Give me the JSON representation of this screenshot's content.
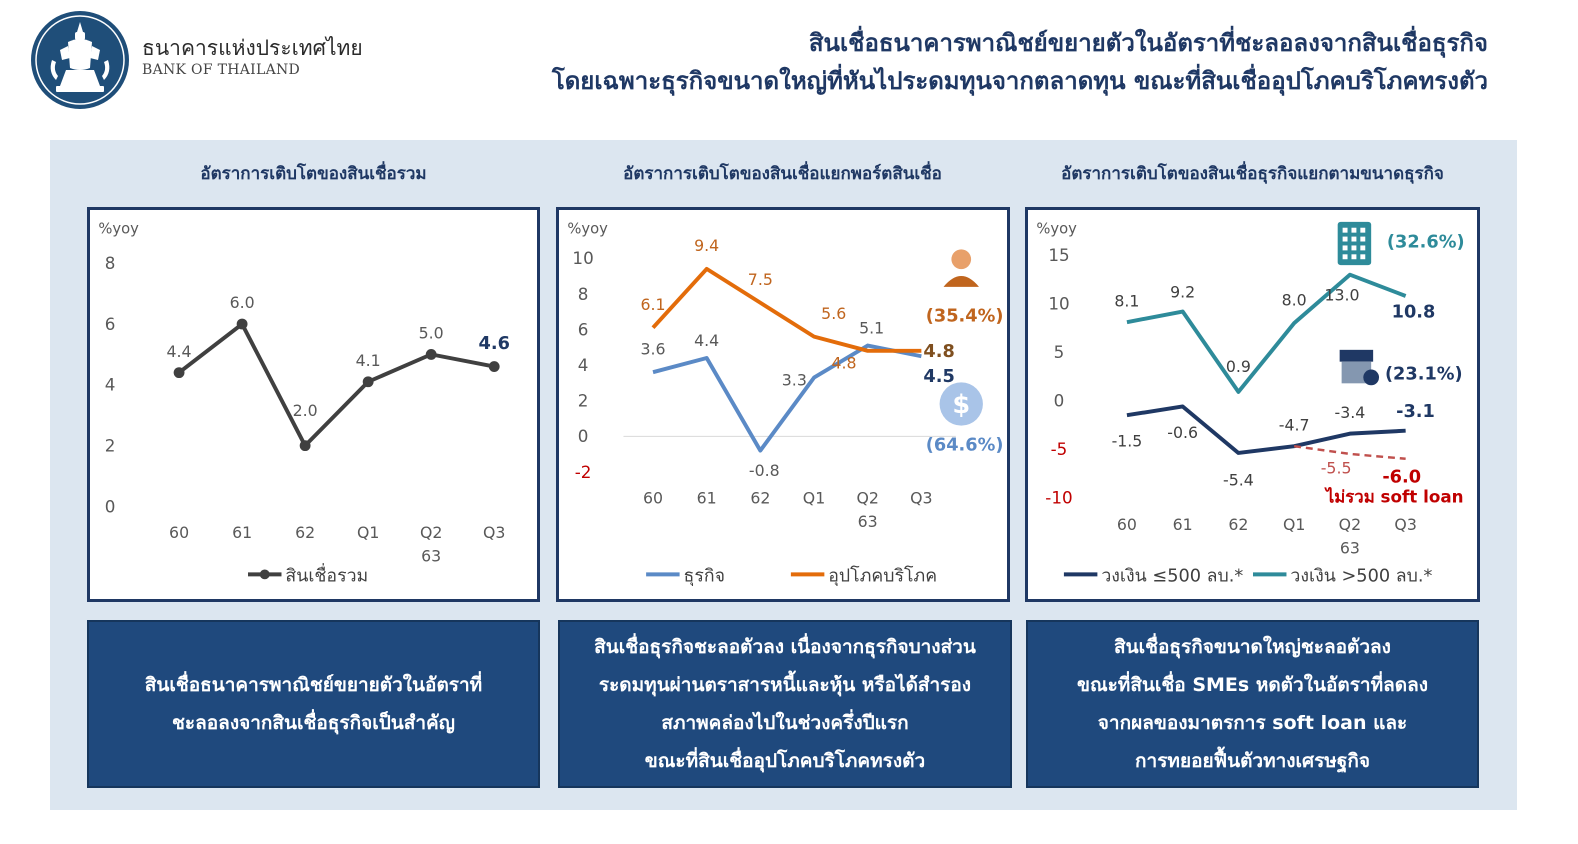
{
  "header": {
    "org_name_th": "ธนาคารแห่งประเทศไทย",
    "org_name_en": "BANK OF THAILAND",
    "headline_line1": "สินเชื่อธนาคารพาณิชย์ขยายตัวในอัตราที่ชะลอลงจากสินเชื่อธุรกิจ",
    "headline_line2": "โดยเฉพาะธุรกิจขนาดใหญ่ที่หันไประดมทุนจากตลาดทุน ขณะที่สินเชื่ออุปโภคบริโภคทรงตัว"
  },
  "colors": {
    "navy": "#1f3864",
    "total_line": "#404040",
    "business_line": "#5b8ac6",
    "consumer_line": "#e36c0a",
    "small_line": "#1f3864",
    "large_line": "#2e8b9a",
    "soft_loan_line": "#c0504d",
    "note_bg": "#1f497d",
    "panel_bg": "#dce6f0"
  },
  "charts": [
    {
      "subtitle": "อัตราการเติบโตของสินเชื่อรวม",
      "note_lines": [
        "สินเชื่อธนาคารพาณิชย์ขยายตัวในอัตราที่",
        "ชะลอลงจากสินเชื่อธุรกิจเป็นสำคัญ"
      ]
    },
    {
      "subtitle": "อัตราการเติบโตของสินเชื่อแยกพอร์ตสินเชื่อ",
      "note_lines": [
        "สินเชื่อธุรกิจชะลอตัวลง เนื่องจากธุรกิจบางส่วน",
        "ระดมทุนผ่านตราสารหนี้และหุ้น หรือได้สำรอง",
        "สภาพคล่องไปในช่วงครึ่งปีแรก",
        "ขณะที่สินเชื่ออุปโภคบริโภคทรงตัว"
      ]
    },
    {
      "subtitle": "อัตราการเติบโตของสินเชื่อธุรกิจแยกตามขนาดธุรกิจ",
      "note_lines": [
        "สินเชื่อธุรกิจขนาดใหญ่ชะลอตัวลง",
        "ขณะที่สินเชื่อ SMEs หดตัวในอัตราที่ลดลง",
        "จากผลของมาตรการ soft loan และ",
        "การทยอยฟื้นตัวทางเศรษฐกิจ"
      ]
    }
  ],
  "chart_data": [
    {
      "type": "line",
      "ylabel": "%yoy",
      "ylim": [
        0,
        8
      ],
      "yticks": [
        0,
        2,
        4,
        6,
        8
      ],
      "categories": [
        "60",
        "61",
        "62",
        "Q1",
        "Q2",
        "Q3"
      ],
      "group_label": "63",
      "grid": false,
      "legend": "bottom",
      "series": [
        {
          "name": "สินเชื่อรวม",
          "values": [
            4.4,
            6.0,
            2.0,
            4.1,
            5.0,
            4.6
          ],
          "labels": [
            "4.4",
            "6.0",
            "2.0",
            "4.1",
            "5.0",
            "4.6"
          ]
        }
      ]
    },
    {
      "type": "line",
      "ylabel": "%yoy",
      "ylim": [
        -2,
        10
      ],
      "yticks": [
        -2,
        0,
        2,
        4,
        6,
        8,
        10
      ],
      "categories": [
        "60",
        "61",
        "62",
        "Q1",
        "Q2",
        "Q3"
      ],
      "group_label": "63",
      "grid": false,
      "legend": "bottom",
      "series": [
        {
          "name": "ธุรกิจ",
          "values": [
            3.6,
            4.4,
            -0.8,
            3.3,
            5.1,
            4.5
          ],
          "labels": [
            "3.6",
            "4.4",
            "-0.8",
            "3.3",
            "5.1",
            "4.5"
          ],
          "share": "(64.6%)"
        },
        {
          "name": "อุปโภคบริโภค",
          "values": [
            6.1,
            9.4,
            7.5,
            5.6,
            4.8,
            4.8
          ],
          "labels": [
            "6.1",
            "9.4",
            "7.5",
            "5.6",
            "4.8",
            "4.8"
          ],
          "share": "(35.4%)"
        }
      ]
    },
    {
      "type": "line",
      "ylabel": "%yoy",
      "ylim": [
        -10,
        15
      ],
      "yticks": [
        -10,
        -5,
        0,
        5,
        10,
        15
      ],
      "categories": [
        "60",
        "61",
        "62",
        "Q1",
        "Q2",
        "Q3"
      ],
      "group_label": "63",
      "grid": false,
      "legend": "bottom",
      "series": [
        {
          "name": "วงเงิน ≤500 ลบ.*",
          "values": [
            -1.5,
            -0.6,
            -5.4,
            -4.7,
            -3.4,
            -3.1
          ],
          "labels": [
            "-1.5",
            "-0.6",
            "-5.4",
            "-4.7",
            "-3.4",
            "-3.1"
          ],
          "share": "(23.1%)"
        },
        {
          "name": "วงเงิน >500 ลบ.*",
          "values": [
            8.1,
            9.2,
            0.9,
            8.0,
            13.0,
            10.8
          ],
          "labels": [
            "8.1",
            "9.2",
            "0.9",
            "8.0",
            "13.0",
            "10.8"
          ],
          "share": "(32.6%)"
        }
      ],
      "annotation_series": {
        "name": "ไม่รวม soft loan",
        "x": [
          "Q1",
          "Q2",
          "Q3"
        ],
        "values": [
          -4.7,
          -5.5,
          -6.0
        ],
        "labels": [
          "-5.5",
          "-6.0"
        ]
      }
    }
  ]
}
